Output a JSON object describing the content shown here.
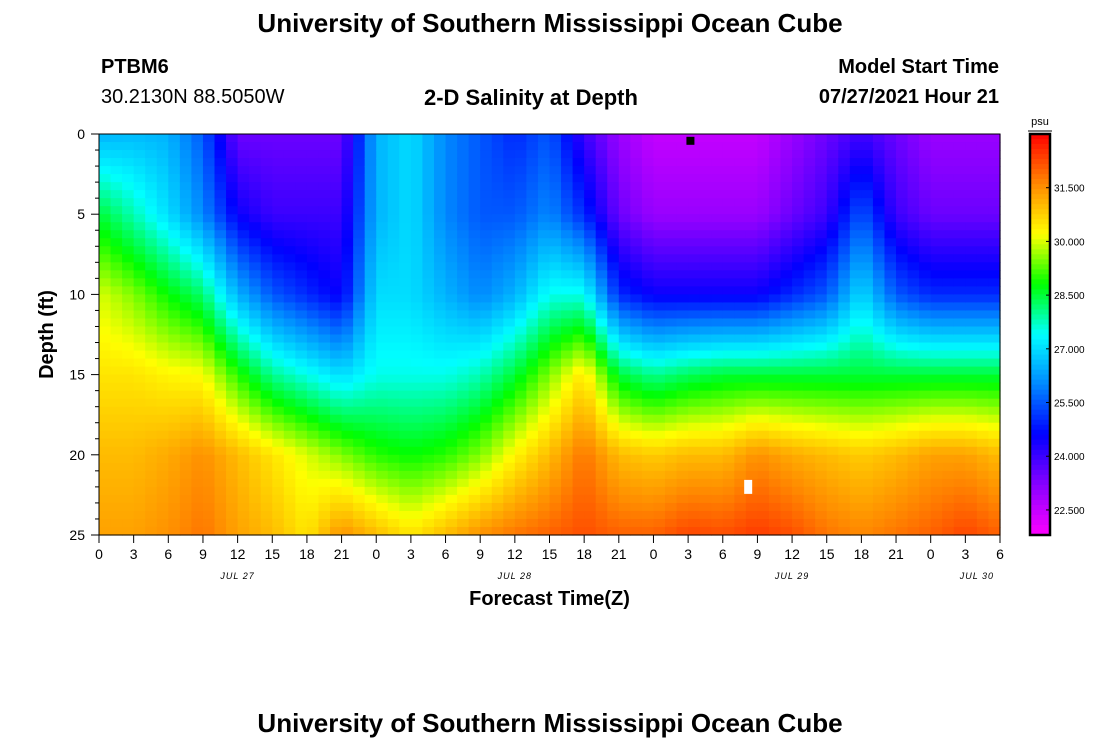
{
  "header": {
    "title_top": "University of Southern Mississippi Ocean Cube",
    "title_bottom": "University of Southern Mississippi Ocean Cube",
    "station_id": "PTBM6",
    "station_coords": "30.2130N  88.5050W",
    "plot_title": "2-D Salinity at Depth",
    "model_start_label": "Model Start Time",
    "model_start_value": "07/27/2021 Hour 21"
  },
  "chart_data": {
    "type": "heatmap",
    "title": "2-D Salinity at Depth",
    "xlabel": "Forecast Time(Z)",
    "ylabel": "Depth (ft)",
    "x_ticks": [
      "0",
      "3",
      "6",
      "9",
      "12",
      "15",
      "18",
      "21",
      "0",
      "3",
      "6",
      "9",
      "12",
      "15",
      "18",
      "21",
      "0",
      "3",
      "6",
      "9",
      "12",
      "15",
      "18",
      "21",
      "0",
      "3",
      "6"
    ],
    "x_date_labels": [
      "JUL 27",
      "JUL 28",
      "JUL 29",
      "JUL 30"
    ],
    "y_ticks": [
      0,
      5,
      10,
      15,
      20,
      25
    ],
    "ylim": [
      25,
      0
    ],
    "xlim_hours": [
      0,
      78
    ],
    "colorbar": {
      "unit": "psu",
      "ticks": [
        "31.500",
        "30.000",
        "28.500",
        "27.000",
        "25.500",
        "24.000",
        "22.500"
      ],
      "range": [
        21.8,
        33.0
      ]
    },
    "surface_field": [
      {
        "hour": 0,
        "s": [
          26.5,
          28.5,
          30.0,
          30.5,
          31.0,
          31.3
        ]
      },
      {
        "hour": 3,
        "s": [
          26.6,
          27.8,
          29.5,
          30.5,
          31.0,
          31.3
        ]
      },
      {
        "hour": 6,
        "s": [
          26.5,
          27.0,
          28.8,
          30.3,
          31.2,
          31.5
        ]
      },
      {
        "hour": 9,
        "s": [
          25.5,
          26.0,
          28.2,
          30.2,
          31.5,
          31.8
        ]
      },
      {
        "hour": 12,
        "s": [
          23.5,
          24.5,
          26.5,
          29.0,
          31.0,
          31.3
        ]
      },
      {
        "hour": 15,
        "s": [
          23.5,
          24.0,
          25.5,
          28.0,
          30.5,
          31.0
        ]
      },
      {
        "hour": 18,
        "s": [
          23.5,
          24.0,
          25.0,
          27.5,
          30.0,
          30.5
        ]
      },
      {
        "hour": 21,
        "s": [
          23.5,
          24.0,
          24.5,
          27.0,
          29.5,
          31.5
        ]
      },
      {
        "hour": 24,
        "s": [
          26.5,
          26.5,
          27.0,
          27.5,
          29.0,
          31.0
        ]
      },
      {
        "hour": 27,
        "s": [
          27.0,
          27.0,
          27.0,
          27.5,
          28.8,
          30.5
        ]
      },
      {
        "hour": 30,
        "s": [
          26.0,
          26.0,
          26.5,
          27.5,
          29.0,
          31.0
        ]
      },
      {
        "hour": 33,
        "s": [
          25.5,
          25.5,
          26.0,
          27.8,
          29.5,
          31.5
        ]
      },
      {
        "hour": 36,
        "s": [
          25.0,
          25.5,
          26.5,
          28.5,
          30.3,
          31.8
        ]
      },
      {
        "hour": 39,
        "s": [
          25.5,
          26.0,
          27.5,
          29.5,
          31.0,
          32.0
        ]
      },
      {
        "hour": 42,
        "s": [
          24.0,
          25.0,
          27.5,
          30.5,
          31.8,
          32.2
        ]
      },
      {
        "hour": 45,
        "s": [
          23.0,
          23.5,
          25.0,
          28.5,
          31.0,
          32.0
        ]
      },
      {
        "hour": 48,
        "s": [
          22.5,
          23.0,
          24.5,
          28.0,
          30.8,
          32.0
        ]
      },
      {
        "hour": 51,
        "s": [
          22.5,
          23.0,
          24.5,
          28.3,
          31.0,
          32.3
        ]
      },
      {
        "hour": 54,
        "s": [
          22.5,
          23.0,
          24.5,
          28.5,
          31.0,
          32.2
        ]
      },
      {
        "hour": 57,
        "s": [
          22.5,
          23.0,
          24.5,
          28.5,
          31.5,
          32.4
        ]
      },
      {
        "hour": 60,
        "s": [
          23.0,
          23.5,
          25.0,
          28.5,
          31.2,
          32.2
        ]
      },
      {
        "hour": 63,
        "s": [
          23.5,
          24.0,
          25.5,
          28.5,
          31.0,
          31.8
        ]
      },
      {
        "hour": 66,
        "s": [
          24.0,
          25.5,
          27.0,
          28.5,
          30.8,
          31.6
        ]
      },
      {
        "hour": 69,
        "s": [
          23.5,
          24.0,
          25.5,
          28.5,
          31.0,
          31.8
        ]
      },
      {
        "hour": 72,
        "s": [
          23.0,
          23.5,
          25.0,
          28.5,
          31.3,
          32.0
        ]
      },
      {
        "hour": 75,
        "s": [
          23.0,
          23.5,
          25.0,
          28.5,
          31.3,
          32.3
        ]
      },
      {
        "hour": 78,
        "s": [
          23.0,
          23.5,
          25.0,
          28.5,
          31.0,
          32.0
        ]
      }
    ],
    "field_depths": [
      0,
      5,
      10,
      15,
      20,
      25
    ],
    "markers": [
      {
        "kind": "square",
        "color": "#000000",
        "hour": 51.2,
        "depth": 0.3
      },
      {
        "kind": "bar",
        "color": "#ffffff",
        "hour": 56.2,
        "depth": 22
      }
    ]
  },
  "colors": {
    "colormap": [
      "#ff00ff",
      "#8800ff",
      "#0000ff",
      "#0088ff",
      "#00ffff",
      "#00ff00",
      "#ffff00",
      "#ff8800",
      "#ff0000"
    ],
    "frame": "#000000"
  }
}
